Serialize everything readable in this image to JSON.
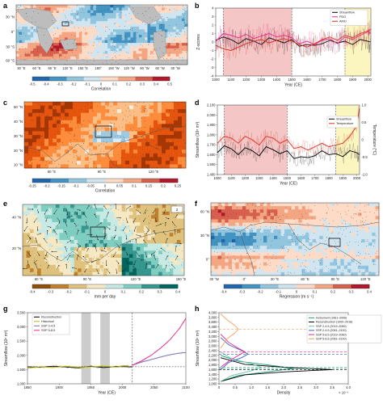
{
  "panels": {
    "a": {
      "label": "a",
      "lat_ticks": [
        "30 °N",
        "0°",
        "30 °S",
        "60 °S"
      ],
      "lon_ticks": [
        "30 °E",
        "60 °E",
        "90 °E",
        "120 °E",
        "150 °E",
        "180°",
        "150 °W",
        "120 °W",
        "90 °W",
        "60 °W",
        "30 °W"
      ],
      "colorbar_ticks": [
        "-0.5",
        "-0.4",
        "-0.3",
        "-0.2",
        "-0.1",
        "0",
        "0.1",
        "0.2",
        "0.3",
        "0.4",
        "0.5"
      ],
      "colorbar_label": "Correlation"
    },
    "b": {
      "label": "b"
    },
    "c": {
      "label": "c",
      "lat_ticks": [
        "50 °N",
        "40 °N",
        "30 °N",
        "20 °N",
        "10 °N"
      ],
      "lon_ticks": [
        "60 °E",
        "90 °E",
        "120 °E"
      ],
      "colorbar_ticks": [
        "-0.25",
        "-0.2",
        "-0.15",
        "-0.1",
        "-0.05",
        "0",
        "0.05",
        "0.1",
        "0.15",
        "0.2",
        "0.25"
      ],
      "colorbar_label": "Correlation"
    },
    "d": {
      "label": "d"
    },
    "e": {
      "label": "e",
      "lat_ticks": [
        "40 °N",
        "20 °N"
      ],
      "lon_ticks": [
        "60 °E",
        "90 °E",
        "120 °E",
        "150 °E"
      ],
      "colorbar_label": "mm per day",
      "colorbar_ticks": [
        "-0.4",
        "-0.3",
        "-0.2",
        "-0.1",
        "0",
        "0.1",
        "0.2",
        "0.3",
        "0.4"
      ],
      "vector_ref": "2"
    },
    "f": {
      "label": "f",
      "lat_ticks": [
        "60 °N",
        "30 °N",
        "0°"
      ],
      "lon_ticks": [
        "30 °W",
        "0°",
        "30 °E",
        "60 °E",
        "90 °E",
        "120 °E"
      ],
      "colorbar_ticks": [
        "-0.4",
        "-0.3",
        "-0.2",
        "-0.1",
        "0",
        "0.1",
        "0.2",
        "0.3",
        "0.4"
      ],
      "colorbar_label": "Regression (m s⁻¹)"
    },
    "g": {
      "label": "g"
    },
    "h": {
      "label": "h"
    }
  },
  "colors": {
    "red": "#d7301f",
    "dark_red": "#8b0000",
    "blue": "#2c7bb6",
    "pink_shade": "#f5c6c6",
    "yellow_shade": "#fbf5c0",
    "grey_shade": "#cccccc",
    "land": "#bdbdbd"
  },
  "chart_data": [
    {
      "id": "b",
      "type": "line",
      "title": "",
      "xlabel": "Year (CE)",
      "ylabel": "Z-scores",
      "xlim": [
        1000,
        2020
      ],
      "ylim": [
        -4,
        4
      ],
      "x_ticks": [
        1000,
        1100,
        1200,
        1300,
        1400,
        1500,
        1600,
        1700,
        1800,
        1900,
        2000
      ],
      "x_tick_labels": [
        "1000",
        "1100",
        "1200",
        "1300",
        "1400",
        "1500",
        "1600",
        "1700",
        "1800",
        "1900",
        "2000"
      ],
      "y_ticks": [
        -4,
        -3,
        -2,
        -1,
        0,
        1,
        2,
        3,
        4
      ],
      "y_tick_labels": [
        "-4",
        "-3",
        "-2",
        "-1",
        "0",
        "1",
        "2",
        "3",
        "4"
      ],
      "shaded_periods": [
        {
          "start": 1050,
          "end": 1500,
          "color": "pink"
        },
        {
          "start": 1850,
          "end": 2018,
          "color": "yellow"
        }
      ],
      "dashed_lines_x": [
        1050,
        1500,
        1850
      ],
      "legend": "top-right",
      "series": [
        {
          "name": "Streamflow",
          "color": "#000000",
          "x": [
            1000,
            1050,
            1100,
            1150,
            1200,
            1250,
            1300,
            1350,
            1400,
            1450,
            1500,
            1550,
            1600,
            1650,
            1700,
            1750,
            1800,
            1850,
            1900,
            1950,
            2000,
            2018
          ],
          "y": [
            0.2,
            0.6,
            0.3,
            -0.2,
            0.4,
            0.1,
            -0.3,
            0.5,
            0.2,
            -0.1,
            0.3,
            -0.5,
            -0.3,
            -0.4,
            -0.2,
            0.2,
            -0.1,
            0.1,
            -0.3,
            0.3,
            0.1,
            0.0
          ]
        },
        {
          "name": "PDO",
          "color": "#e7298a",
          "x": [
            1000,
            1050,
            1100,
            1150,
            1200,
            1250,
            1300,
            1350,
            1400,
            1450,
            1500,
            1550,
            1600,
            1650,
            1700,
            1750,
            1800,
            1850,
            1900,
            1950,
            2000,
            2018
          ],
          "y": [
            0.1,
            1.0,
            0.8,
            0.5,
            0.9,
            0.4,
            0.7,
            1.0,
            0.6,
            0.8,
            0.5,
            -0.2,
            0.1,
            -0.3,
            0.2,
            0.4,
            -0.2,
            0.6,
            0.3,
            0.8,
            1.2,
            1.0
          ]
        },
        {
          "name": "AMO",
          "color": "#d7301f",
          "x": [
            1000,
            1050,
            1100,
            1150,
            1200,
            1250,
            1300,
            1350,
            1400,
            1450,
            1500,
            1550,
            1600,
            1650,
            1700,
            1750,
            1800,
            1850,
            1900,
            1950,
            2000,
            2018
          ],
          "y": [
            -0.4,
            -0.8,
            -1.0,
            -0.6,
            -0.2,
            0.1,
            0.3,
            -0.1,
            0.2,
            0.4,
            0.1,
            -0.3,
            -0.6,
            -0.2,
            0.3,
            0.6,
            0.2,
            0.8,
            0.5,
            1.0,
            1.3,
            1.5
          ]
        }
      ]
    },
    {
      "id": "d",
      "type": "line",
      "title": "",
      "xlabel": "Year (CE)",
      "ylabel": "Streamflow (10⁸ m³)",
      "y2label": "Temperature (°C)",
      "xlim": [
        1000,
        2020
      ],
      "ylim": [
        1400,
        2100
      ],
      "y2lim": [
        -1.0,
        1.0
      ],
      "x_ticks": [
        1000,
        1100,
        1200,
        1300,
        1400,
        1500,
        1600,
        1700,
        1800,
        1900,
        2000
      ],
      "x_tick_labels": [
        "1000",
        "1100",
        "1200",
        "1300",
        "1400",
        "1500",
        "1600",
        "1700",
        "1800",
        "1900",
        "2000"
      ],
      "y_ticks": [
        1400,
        1500,
        1600,
        1700,
        1800,
        1900,
        2000,
        2100
      ],
      "y_tick_labels": [
        "1,400",
        "1,500",
        "1,600",
        "1,700",
        "1,800",
        "1,900",
        "2,000",
        "2,100"
      ],
      "y2_ticks": [
        -1.0,
        -0.5,
        0,
        0.5,
        1.0
      ],
      "y2_tick_labels": [
        "-1.0",
        "-0.5",
        "0",
        "0.5",
        "1.0"
      ],
      "shaded_periods": [
        {
          "start": 1050,
          "end": 1500,
          "color": "pink"
        },
        {
          "start": 1850,
          "end": 2018,
          "color": "yellow"
        }
      ],
      "dashed_lines_x": [
        1050,
        1500,
        1850
      ],
      "legend": "top-right",
      "series": [
        {
          "name": "Streamflow",
          "color": "#000000",
          "x": [
            1000,
            1050,
            1100,
            1150,
            1200,
            1250,
            1300,
            1350,
            1400,
            1450,
            1500,
            1550,
            1600,
            1650,
            1700,
            1750,
            1800,
            1850,
            1900,
            1950,
            2000,
            2018
          ],
          "y": [
            1620,
            1690,
            1660,
            1600,
            1670,
            1640,
            1590,
            1680,
            1650,
            1610,
            1640,
            1560,
            1580,
            1570,
            1590,
            1640,
            1600,
            1610,
            1580,
            1640,
            1620,
            1600
          ]
        },
        {
          "name": "Temperature",
          "color": "#d7301f",
          "axis": "right",
          "x": [
            1000,
            1050,
            1100,
            1150,
            1200,
            1250,
            1300,
            1350,
            1400,
            1450,
            1500,
            1550,
            1600,
            1650,
            1700,
            1750,
            1800,
            1850,
            1900,
            1950,
            2000,
            2018
          ],
          "y": [
            -0.1,
            0.1,
            0.05,
            -0.1,
            0.1,
            0.0,
            -0.15,
            0.1,
            0.05,
            -0.1,
            0.0,
            -0.25,
            -0.2,
            -0.3,
            -0.2,
            -0.1,
            -0.2,
            -0.15,
            -0.1,
            0.1,
            0.4,
            0.9
          ]
        }
      ]
    },
    {
      "id": "g",
      "type": "line",
      "title": "",
      "xlabel": "Year (CE)",
      "ylabel": "Streamflow (10⁸ m³)",
      "xlim": [
        1850,
        2100
      ],
      "ylim": [
        1000,
        3500
      ],
      "x_ticks": [
        1850,
        1900,
        1950,
        2000,
        2050,
        2100
      ],
      "x_tick_labels": [
        "1850",
        "1900",
        "1950",
        "2000",
        "2050",
        "2100"
      ],
      "y_ticks": [
        1000,
        1500,
        2000,
        2500,
        3000,
        3500
      ],
      "y_tick_labels": [
        "1,000",
        "1,500",
        "2,000",
        "2,500",
        "3,000",
        "3,500"
      ],
      "shaded_periods": [
        {
          "start": 1935,
          "end": 1950,
          "color": "grey"
        },
        {
          "start": 1965,
          "end": 1980,
          "color": "grey"
        }
      ],
      "dashed_lines_x": [
        2015
      ],
      "dashed_lines_y": [
        1600
      ],
      "legend": "top-left",
      "series": [
        {
          "name": "Reconstruction",
          "color": "#000000",
          "x": [
            1850,
            1870,
            1890,
            1910,
            1930,
            1950,
            1970,
            1990,
            2010,
            2015
          ],
          "y": [
            1600,
            1580,
            1620,
            1590,
            1560,
            1620,
            1570,
            1610,
            1600,
            1600
          ]
        },
        {
          "name": "Historical",
          "color": "#b8b800",
          "x": [
            1850,
            1870,
            1890,
            1910,
            1930,
            1950,
            1970,
            1990,
            2010
          ],
          "y": [
            1550,
            1600,
            1570,
            1620,
            1580,
            1600,
            1620,
            1590,
            1650
          ]
        },
        {
          "name": "SSP 2-4.5",
          "color": "#7570b3",
          "x": [
            2015,
            2030,
            2045,
            2060,
            2075,
            2090,
            2100
          ],
          "y": [
            1650,
            1760,
            1850,
            1940,
            2020,
            2080,
            2100
          ]
        },
        {
          "name": "SSP 5-8.5",
          "color": "#e7298a",
          "x": [
            2015,
            2030,
            2045,
            2060,
            2075,
            2090,
            2100
          ],
          "y": [
            1650,
            1800,
            2000,
            2250,
            2550,
            2950,
            3300
          ]
        }
      ]
    },
    {
      "id": "h",
      "type": "line",
      "title": "",
      "xlabel": "Density",
      "ylabel": "Streamflow (10⁸ m³)",
      "x_exponent_label": "× 10⁻³",
      "xlim": [
        0,
        4.0
      ],
      "ylim": [
        1000,
        4000
      ],
      "x_ticks": [
        0,
        0.5,
        1.0,
        1.5,
        2.0,
        2.5,
        3.0,
        3.5,
        4.0
      ],
      "x_tick_labels": [
        "0",
        "0.5",
        "1.0",
        "1.5",
        "2.0",
        "2.5",
        "3.0",
        "3.5",
        "4.0"
      ],
      "y_ticks": [
        1000,
        1200,
        1400,
        1600,
        1800,
        2000,
        2200,
        2400,
        2600,
        2800,
        3000,
        3200,
        3400,
        3600,
        3800,
        4000
      ],
      "y_tick_labels": [
        "1,000",
        "1,200",
        "1,400",
        "1,600",
        "1,800",
        "2,000",
        "2,200",
        "2,400",
        "2,600",
        "2,800",
        "3,000",
        "3,200",
        "3,400",
        "3,600",
        "3,800",
        "4,000"
      ],
      "legend": "top-right",
      "series": [
        {
          "name": "Instrument (1961–2006)",
          "color": "#1b9e77",
          "mean": 1650,
          "x": [
            0.05,
            0.6,
            1.6,
            2.3,
            1.6,
            0.6,
            0.05
          ],
          "y": [
            1100,
            1350,
            1520,
            1650,
            1780,
            1950,
            2200
          ]
        },
        {
          "name": "Reconstruction (1000–2018)",
          "color": "#000000",
          "mean": 1600,
          "x": [
            0.05,
            0.8,
            2.0,
            3.5,
            2.0,
            0.8,
            0.05
          ],
          "y": [
            1100,
            1380,
            1500,
            1600,
            1700,
            1820,
            2100
          ]
        },
        {
          "name": "SSP 2-4.5 (2019–2060)",
          "color": "#66c2a5",
          "mean": 1700,
          "x": [
            0.05,
            0.4,
            1.0,
            1.3,
            1.0,
            0.4,
            0.05
          ],
          "y": [
            1100,
            1350,
            1550,
            1700,
            1850,
            2050,
            2350
          ]
        },
        {
          "name": "SSP 2-4.5 (2061–2100)",
          "color": "#3f5fbf",
          "mean": 2250,
          "x": [
            0.05,
            0.3,
            0.7,
            0.9,
            0.7,
            0.3,
            0.05
          ],
          "y": [
            1600,
            1900,
            2100,
            2250,
            2400,
            2650,
            2950
          ]
        },
        {
          "name": "SSP 5-8.5 (2019–2060)",
          "color": "#e7298a",
          "mean": 2350,
          "x": [
            0.05,
            0.3,
            0.6,
            0.8,
            0.6,
            0.3,
            0.05
          ],
          "y": [
            1700,
            1950,
            2200,
            2350,
            2500,
            2750,
            3100
          ]
        },
        {
          "name": "SSP 5-8.5 (2061–2100)",
          "color": "#f4a261",
          "mean": 3300,
          "x": [
            0.05,
            0.25,
            0.5,
            0.6,
            0.5,
            0.25,
            0.05
          ],
          "y": [
            2500,
            2900,
            3150,
            3300,
            3450,
            3700,
            3950
          ]
        }
      ]
    }
  ]
}
